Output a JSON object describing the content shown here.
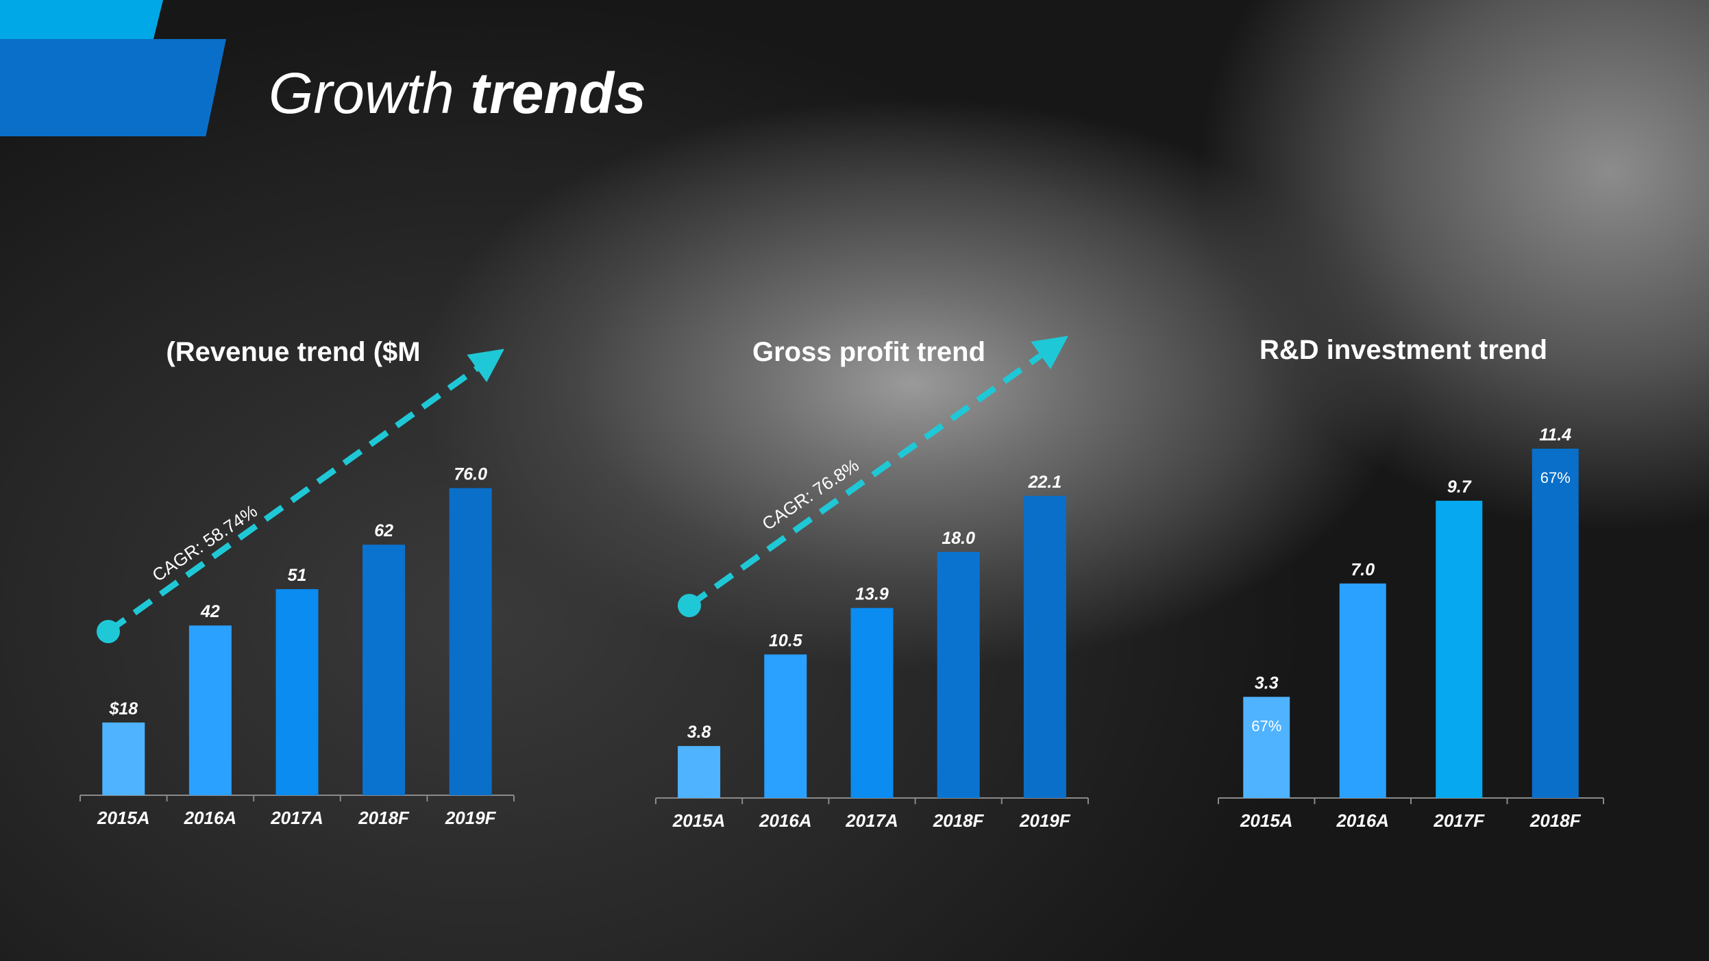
{
  "slide": {
    "title_part1": "Growth ",
    "title_part2": "trends"
  },
  "colors": {
    "accent_light": "#00a8e8",
    "accent_dark": "#0a6fc9",
    "arrow": "#1fc8d6",
    "bars": [
      "#4fb3ff",
      "#2aa0ff",
      "#0a8cf0",
      "#0a73d0",
      "#0a6fc9"
    ],
    "rd_bars": [
      "#4fb3ff",
      "#2aa0ff",
      "#06a9ef",
      "#0a6fc9"
    ]
  },
  "chart_data": [
    {
      "type": "bar",
      "title": "(Revenue trend ($M",
      "categories": [
        "2015A",
        "2016A",
        "2017A",
        "2018F",
        "2019F"
      ],
      "values": [
        18,
        42,
        51,
        62,
        76.0
      ],
      "value_labels": [
        "$18",
        "42",
        "51",
        "62",
        "76.0"
      ],
      "ylim": [
        0,
        80
      ],
      "annotation": "CAGR: 58.74%"
    },
    {
      "type": "bar",
      "title": "Gross profit trend",
      "categories": [
        "2015A",
        "2016A",
        "2017A",
        "2018F",
        "2019F"
      ],
      "values": [
        3.8,
        10.5,
        13.9,
        18.0,
        22.1
      ],
      "value_labels": [
        "3.8",
        "10.5",
        "13.9",
        "18.0",
        "22.1"
      ],
      "ylim": [
        0,
        23.3
      ],
      "annotation": "CAGR: 76.8%"
    },
    {
      "type": "bar",
      "title": "R&D investment trend",
      "categories": [
        "2015A",
        "2016A",
        "2017F",
        "2018F"
      ],
      "values": [
        3.3,
        7.0,
        9.7,
        11.4
      ],
      "value_labels": [
        "3.3",
        "7.0",
        "9.7",
        "11.4"
      ],
      "ylim": [
        0,
        11.4
      ],
      "bar_annotations": [
        "67%",
        "",
        "",
        "67%"
      ]
    }
  ]
}
